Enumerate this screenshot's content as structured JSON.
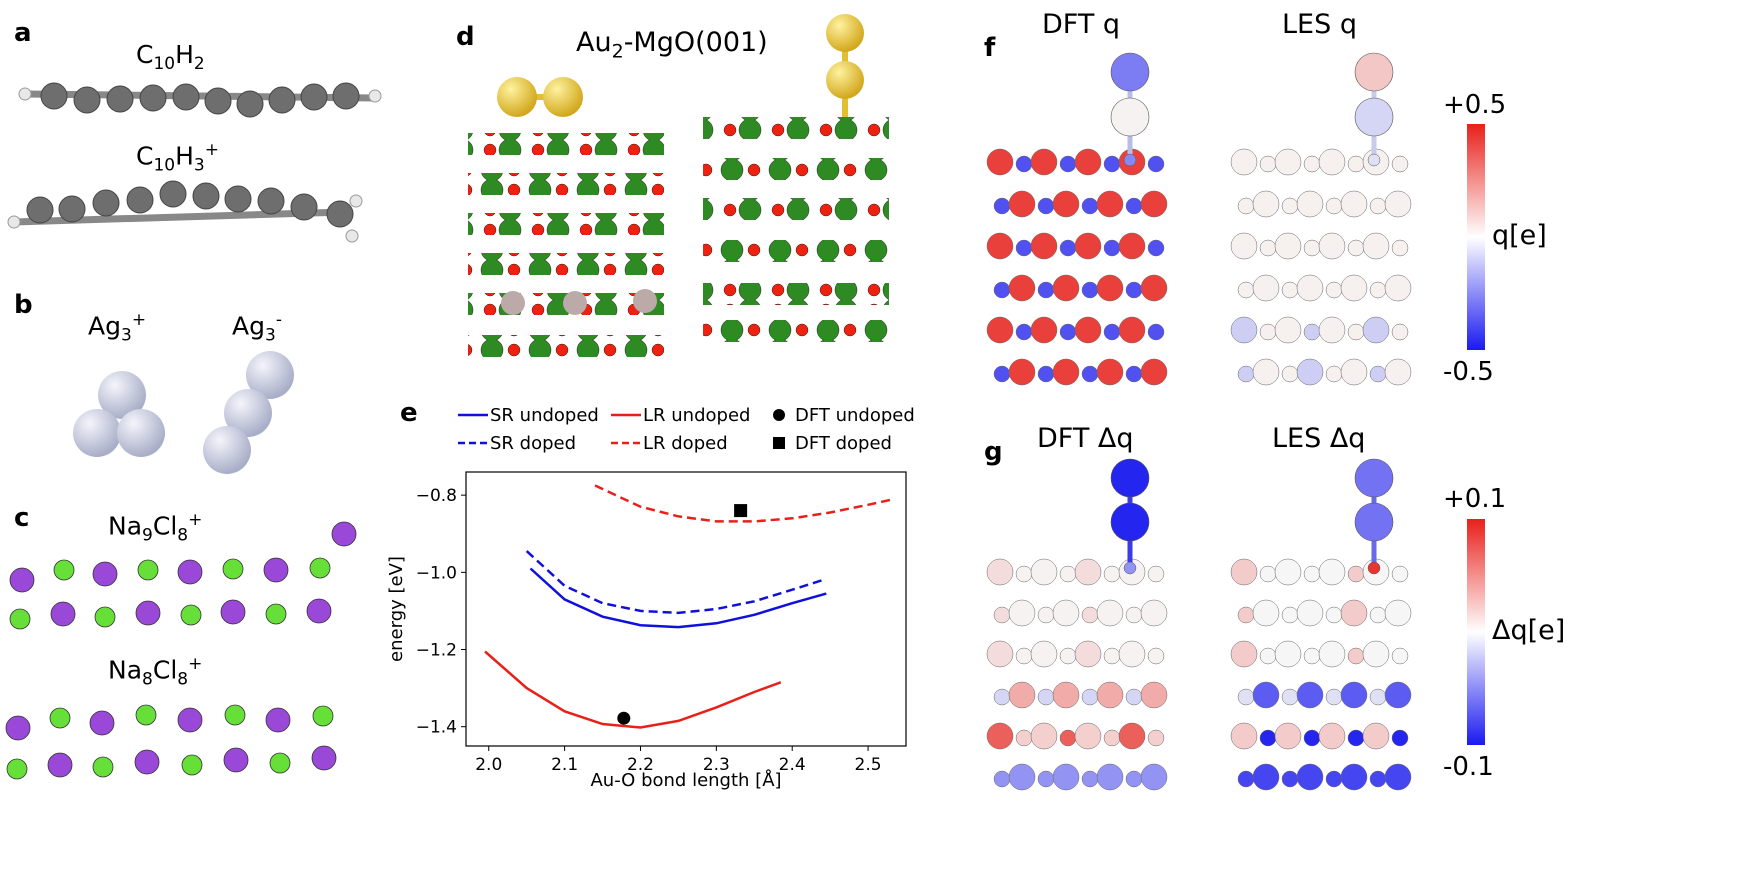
{
  "figure": {
    "panels": {
      "a": {
        "letter": "a",
        "mol1": {
          "base": "C",
          "sub1": "10",
          "mid": "H",
          "sub2": "2",
          "sup": ""
        },
        "mol2": {
          "base": "C",
          "sub1": "10",
          "mid": "H",
          "sub2": "3",
          "sup": "+"
        }
      },
      "b": {
        "letter": "b",
        "mol1": {
          "base": "Ag",
          "sub": "3",
          "sup": "+"
        },
        "mol2": {
          "base": "Ag",
          "sub": "3",
          "sup": "-"
        }
      },
      "c": {
        "letter": "c",
        "mol1": {
          "base": "Na",
          "sub1": "9",
          "mid": "Cl",
          "sub2": "8",
          "sup": "+"
        },
        "mol2": {
          "base": "Na",
          "sub1": "8",
          "mid": "Cl",
          "sub2": "8",
          "sup": "+"
        }
      },
      "d": {
        "letter": "d",
        "title_pre": "Au",
        "title_sub": "2",
        "title_post": "-MgO(001)"
      },
      "e": {
        "letter": "e"
      },
      "f": {
        "letter": "f",
        "left_title": "DFT q",
        "right_title": "LES q",
        "colorbar": {
          "max": "+0.5",
          "min": "-0.5",
          "label": "q[e]"
        }
      },
      "g": {
        "letter": "g",
        "left_title": "DFT Δq",
        "right_title": "LES Δq",
        "colorbar": {
          "max": "+0.1",
          "min": "-0.1",
          "label": "Δq[e]"
        }
      }
    },
    "colors": {
      "carbon": "#6e6e6e",
      "hydrogen": "#e8e8e8",
      "silver": "#c8cce0",
      "sodium": "#9a48d8",
      "chlorine": "#66e038",
      "gold": "#e0c030",
      "oxygen": "#ee2010",
      "magnesium": "#2e8a22",
      "dopant": "#bcaaa8",
      "sr": "#1010dd",
      "lr": "#e8201a"
    }
  },
  "chart_data": {
    "type": "line",
    "xlabel": "Au-O bond length [Å]",
    "ylabel": "energy [eV]",
    "xlim": [
      1.97,
      2.55
    ],
    "ylim": [
      -1.45,
      -0.74
    ],
    "xticks": [
      2.0,
      2.1,
      2.2,
      2.3,
      2.4,
      2.5
    ],
    "xtick_labels": [
      "2.0",
      "2.1",
      "2.2",
      "2.3",
      "2.4",
      "2.5"
    ],
    "yticks": [
      -1.4,
      -1.2,
      -1.0,
      -0.8
    ],
    "ytick_labels": [
      "−1.4",
      "−1.2",
      "−1.0",
      "−0.8"
    ],
    "series": [
      {
        "name": "SR undoped",
        "style": "solid",
        "color": "#1010dd",
        "x": [
          2.055,
          2.1,
          2.15,
          2.2,
          2.25,
          2.3,
          2.35,
          2.4,
          2.445
        ],
        "y": [
          -0.99,
          -1.07,
          -1.115,
          -1.137,
          -1.142,
          -1.132,
          -1.11,
          -1.08,
          -1.055
        ]
      },
      {
        "name": "SR doped",
        "style": "dashed",
        "color": "#1010dd",
        "x": [
          2.05,
          2.1,
          2.15,
          2.2,
          2.25,
          2.3,
          2.35,
          2.4,
          2.44
        ],
        "y": [
          -0.945,
          -1.035,
          -1.08,
          -1.1,
          -1.105,
          -1.095,
          -1.075,
          -1.045,
          -1.02
        ]
      },
      {
        "name": "LR undoped",
        "style": "solid",
        "color": "#e8201a",
        "x": [
          1.995,
          2.05,
          2.1,
          2.15,
          2.2,
          2.25,
          2.3,
          2.35,
          2.385
        ],
        "y": [
          -1.205,
          -1.3,
          -1.36,
          -1.393,
          -1.402,
          -1.385,
          -1.35,
          -1.31,
          -1.285
        ]
      },
      {
        "name": "LR doped",
        "style": "dashed",
        "color": "#e8201a",
        "x": [
          2.14,
          2.2,
          2.25,
          2.3,
          2.35,
          2.4,
          2.45,
          2.5,
          2.535
        ],
        "y": [
          -0.775,
          -0.83,
          -0.855,
          -0.868,
          -0.868,
          -0.86,
          -0.845,
          -0.825,
          -0.81
        ]
      },
      {
        "name": "DFT undoped",
        "style": "marker-circle",
        "color": "#000000",
        "x": [
          2.178
        ],
        "y": [
          -1.378
        ]
      },
      {
        "name": "DFT doped",
        "style": "marker-square",
        "color": "#000000",
        "x": [
          2.332
        ],
        "y": [
          -0.84
        ]
      }
    ],
    "legend": {
      "placement": "top",
      "entries": [
        "SR undoped",
        "LR undoped",
        "DFT undoped",
        "SR doped",
        "LR doped",
        "DFT doped"
      ]
    }
  }
}
